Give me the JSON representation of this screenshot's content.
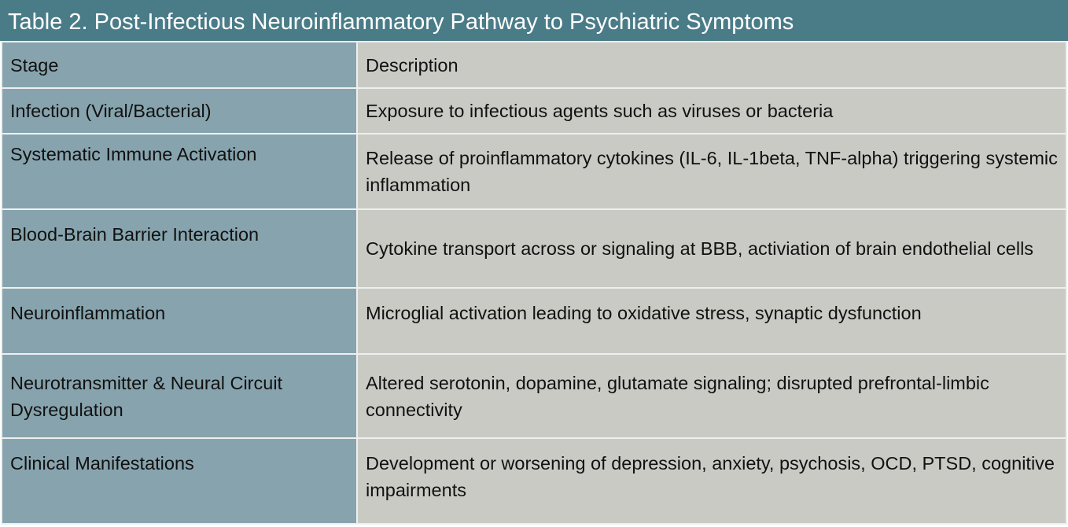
{
  "title": "Table 2. Post-Infectious Neuroinflammatory Pathway to Psychiatric Symptoms",
  "colors": {
    "title_bg": "#4a7c88",
    "stage_bg": "#87a4ae",
    "desc_bg": "#cacac5"
  },
  "headers": [
    "Stage",
    "Description"
  ],
  "rows": [
    {
      "stage": "Infection (Viral/Bacterial)",
      "description": "Exposure to infectious agents such as viruses or bacteria"
    },
    {
      "stage": "Systematic Immune Activation",
      "description": "Release of proinflammatory cytokines (IL-6, IL-1beta, TNF-alpha) triggering systemic inflammation"
    },
    {
      "stage": "Blood-Brain Barrier Interaction",
      "description": "Cytokine transport across or signaling at BBB, activiation of brain endothelial cells"
    },
    {
      "stage": "Neuroinflammation",
      "description": "Microglial activation leading to oxidative stress, synaptic dysfunction"
    },
    {
      "stage": "Neurotransmitter & Neural Circuit Dysregulation",
      "description": "Altered serotonin, dopamine, glutamate signaling; disrupted prefrontal-limbic connectivity"
    },
    {
      "stage": "Clinical Manifestations",
      "description": "Development or worsening of depression, anxiety, psychosis, OCD, PTSD, cognitive impairments"
    }
  ]
}
